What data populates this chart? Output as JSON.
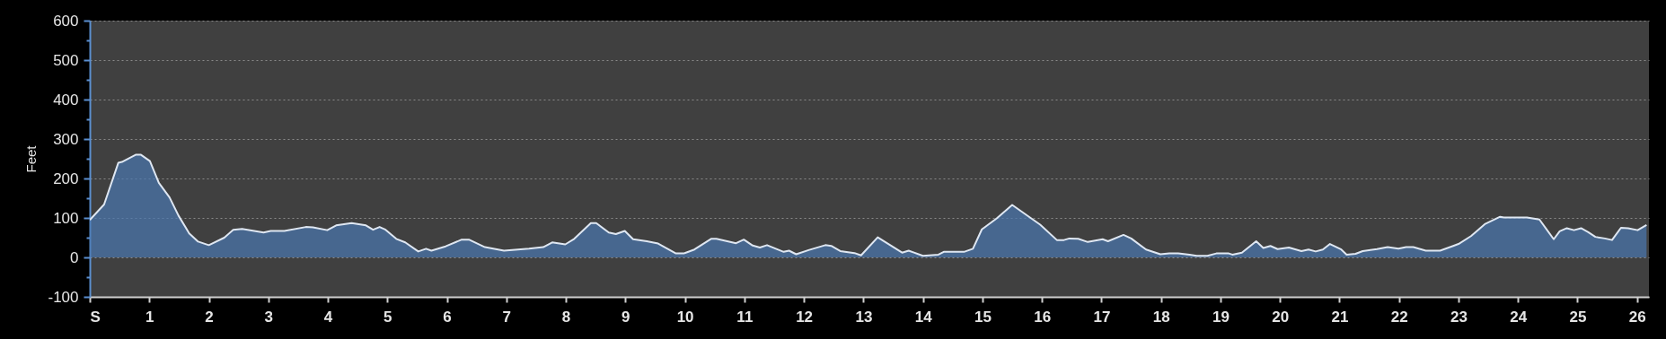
{
  "chart_data": {
    "type": "area",
    "ylabel": "Feet",
    "x": [
      0,
      0.24,
      0.48,
      0.54,
      0.77,
      0.86,
      1.01,
      1.16,
      1.34,
      1.49,
      1.67,
      1.82,
      2.0,
      2.26,
      2.41,
      2.56,
      2.92,
      3.04,
      3.27,
      3.63,
      3.75,
      3.99,
      4.14,
      4.4,
      4.64,
      4.76,
      4.87,
      4.97,
      5.15,
      5.3,
      5.52,
      5.65,
      5.74,
      5.98,
      6.25,
      6.37,
      6.64,
      6.96,
      7.38,
      7.62,
      7.77,
      7.99,
      8.14,
      8.42,
      8.51,
      8.72,
      8.84,
      8.99,
      9.13,
      9.36,
      9.55,
      9.85,
      9.98,
      10.16,
      10.44,
      10.53,
      10.86,
      10.99,
      11.14,
      11.26,
      11.38,
      11.66,
      11.75,
      11.87,
      12.09,
      12.36,
      12.46,
      12.61,
      12.85,
      12.96,
      13.24,
      13.65,
      13.76,
      14.0,
      14.26,
      14.35,
      14.69,
      14.84,
      14.99,
      15.24,
      15.5,
      15.97,
      16.25,
      16.37,
      16.46,
      16.61,
      16.77,
      17.02,
      17.11,
      17.37,
      17.5,
      17.75,
      17.99,
      18.14,
      18.29,
      18.48,
      18.6,
      18.78,
      18.93,
      19.14,
      19.2,
      19.36,
      19.6,
      19.72,
      19.84,
      19.96,
      20.15,
      20.36,
      20.48,
      20.6,
      20.72,
      20.84,
      21.03,
      21.12,
      21.27,
      21.39,
      21.63,
      21.81,
      21.99,
      22.12,
      22.24,
      22.45,
      22.69,
      22.91,
      23.0,
      23.21,
      23.45,
      23.7,
      23.76,
      24.15,
      24.36,
      24.6,
      24.7,
      24.82,
      24.94,
      25.06,
      25.18,
      25.3,
      25.46,
      25.58,
      25.73,
      25.85,
      26.01,
      26.16
    ],
    "series": [
      {
        "color": "#4a77b0",
        "values": [
          95,
          134,
          240,
          242,
          260,
          260,
          244,
          189,
          152,
          106,
          61,
          40,
          31,
          50,
          70,
          72,
          63,
          67,
          67,
          77,
          76,
          69,
          81,
          87,
          81,
          70,
          77,
          70,
          47,
          38,
          15,
          22,
          17,
          28,
          45,
          45,
          26,
          17,
          22,
          26,
          38,
          33,
          47,
          87,
          87,
          63,
          59,
          67,
          46,
          41,
          35,
          10,
          10,
          20,
          47,
          47,
          36,
          45,
          30,
          25,
          31,
          14,
          17,
          8,
          19,
          31,
          29,
          16,
          11,
          5,
          51,
          12,
          17,
          4,
          7,
          14,
          14,
          22,
          71,
          99,
          133,
          83,
          44,
          44,
          48,
          47,
          39,
          46,
          41,
          57,
          48,
          20,
          8,
          10,
          10,
          7,
          4,
          4,
          10,
          10,
          7,
          12,
          41,
          24,
          29,
          21,
          25,
          16,
          20,
          15,
          20,
          34,
          20,
          7,
          9,
          16,
          21,
          26,
          22,
          26,
          26,
          17,
          17,
          29,
          34,
          54,
          85,
          103,
          101,
          101,
          96,
          46,
          66,
          74,
          69,
          74,
          64,
          52,
          48,
          44,
          75,
          74,
          69,
          82
        ]
      }
    ],
    "xlim": [
      0,
      26.2
    ],
    "xticks": [
      {
        "value": 0,
        "label": "S"
      },
      1,
      2,
      3,
      4,
      5,
      6,
      7,
      8,
      9,
      10,
      11,
      12,
      13,
      14,
      15,
      16,
      17,
      18,
      19,
      20,
      21,
      22,
      23,
      24,
      25,
      26
    ],
    "ylim": [
      -100,
      600
    ],
    "yticks": [
      -100,
      {
        "value": -50,
        "label": null
      },
      0,
      {
        "value": 50,
        "label": null
      },
      100,
      {
        "value": 150,
        "label": null
      },
      200,
      {
        "value": 250,
        "label": null
      },
      300,
      {
        "value": 350,
        "label": null
      },
      400,
      {
        "value": 450,
        "label": null
      },
      500,
      {
        "value": 550,
        "label": null
      },
      600
    ],
    "grid": "y",
    "marker": "none",
    "line_style": "solid"
  }
}
